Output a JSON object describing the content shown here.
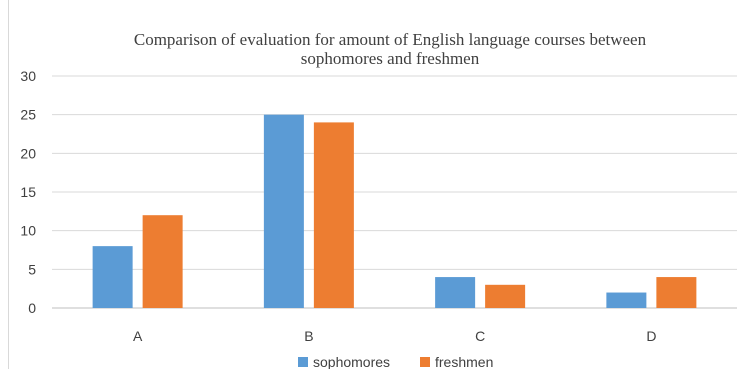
{
  "chart_data": {
    "type": "bar",
    "title_line1": "Comparison of evaluation for amount of English language courses between",
    "title_line2": "sophomores and freshmen",
    "categories": [
      "A",
      "B",
      "C",
      "D"
    ],
    "series": [
      {
        "name": "sophomores",
        "values": [
          8,
          25,
          4,
          2
        ],
        "color": "#5b9bd5"
      },
      {
        "name": "freshmen",
        "values": [
          12,
          24,
          3,
          4
        ],
        "color": "#ed7d31"
      }
    ],
    "ylim": [
      0,
      30
    ],
    "yticks": [
      0,
      5,
      10,
      15,
      20,
      25,
      30
    ],
    "grid": true,
    "legend_position": "bottom"
  }
}
